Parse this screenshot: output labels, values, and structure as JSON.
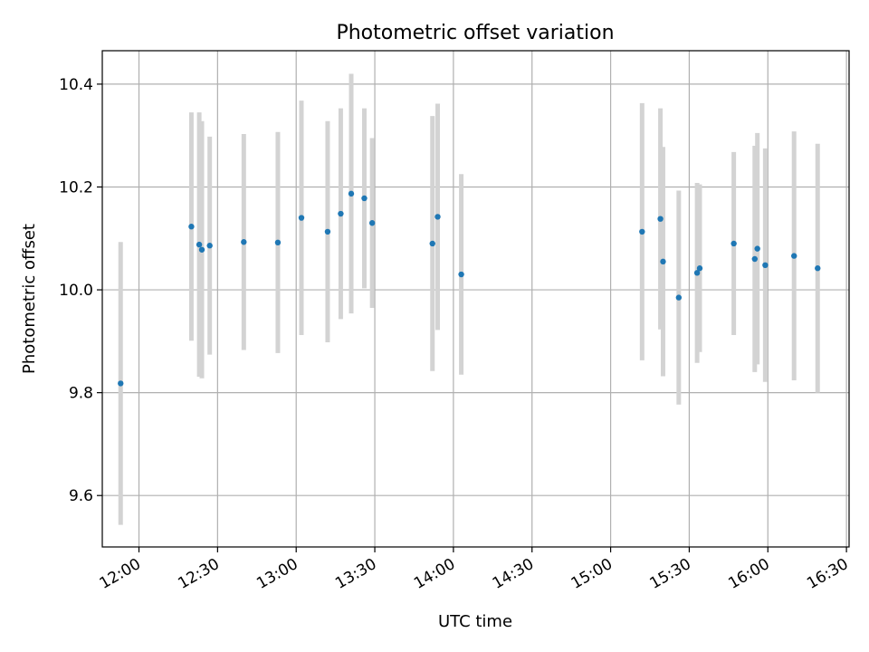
{
  "chart_data": {
    "type": "scatter",
    "title": "Photometric offset variation",
    "xlabel": "UTC time",
    "ylabel": "Photometric offset",
    "x_ticks": [
      "12:00",
      "12:30",
      "13:00",
      "13:30",
      "14:00",
      "14:30",
      "15:00",
      "15:30",
      "16:00",
      "16:30"
    ],
    "y_ticks": [
      "9.6",
      "9.8",
      "10.0",
      "10.2",
      "10.4"
    ],
    "xlim": [
      "11:46",
      "16:31"
    ],
    "ylim": [
      9.5,
      10.465
    ],
    "grid": true,
    "point_color": "#1f77b4",
    "errorbar_color": "#d3d3d3",
    "points": [
      {
        "x": "11:53",
        "y": 9.818,
        "yerr": 0.275
      },
      {
        "x": "12:20",
        "y": 10.123,
        "yerr": 0.222
      },
      {
        "x": "12:23",
        "y": 10.088,
        "yerr": 0.257
      },
      {
        "x": "12:24",
        "y": 10.078,
        "yerr": 0.25
      },
      {
        "x": "12:27",
        "y": 10.086,
        "yerr": 0.212
      },
      {
        "x": "12:40",
        "y": 10.093,
        "yerr": 0.21
      },
      {
        "x": "12:53",
        "y": 10.092,
        "yerr": 0.215
      },
      {
        "x": "13:02",
        "y": 10.14,
        "yerr": 0.228
      },
      {
        "x": "13:12",
        "y": 10.113,
        "yerr": 0.215
      },
      {
        "x": "13:17",
        "y": 10.148,
        "yerr": 0.205
      },
      {
        "x": "13:21",
        "y": 10.187,
        "yerr": 0.233
      },
      {
        "x": "13:26",
        "y": 10.178,
        "yerr": 0.175
      },
      {
        "x": "13:29",
        "y": 10.13,
        "yerr": 0.165
      },
      {
        "x": "13:52",
        "y": 10.09,
        "yerr": 0.248
      },
      {
        "x": "13:54",
        "y": 10.142,
        "yerr": 0.22
      },
      {
        "x": "14:03",
        "y": 10.03,
        "yerr": 0.195
      },
      {
        "x": "15:12",
        "y": 10.113,
        "yerr": 0.25
      },
      {
        "x": "15:19",
        "y": 10.138,
        "yerr": 0.215
      },
      {
        "x": "15:20",
        "y": 10.055,
        "yerr": 0.223
      },
      {
        "x": "15:26",
        "y": 9.985,
        "yerr": 0.208
      },
      {
        "x": "15:33",
        "y": 10.033,
        "yerr": 0.175
      },
      {
        "x": "15:34",
        "y": 10.042,
        "yerr": 0.163
      },
      {
        "x": "15:47",
        "y": 10.09,
        "yerr": 0.178
      },
      {
        "x": "15:55",
        "y": 10.06,
        "yerr": 0.22
      },
      {
        "x": "15:56",
        "y": 10.08,
        "yerr": 0.225
      },
      {
        "x": "15:59",
        "y": 10.048,
        "yerr": 0.227
      },
      {
        "x": "16:10",
        "y": 10.066,
        "yerr": 0.242
      },
      {
        "x": "16:19",
        "y": 10.042,
        "yerr": 0.242
      }
    ]
  }
}
